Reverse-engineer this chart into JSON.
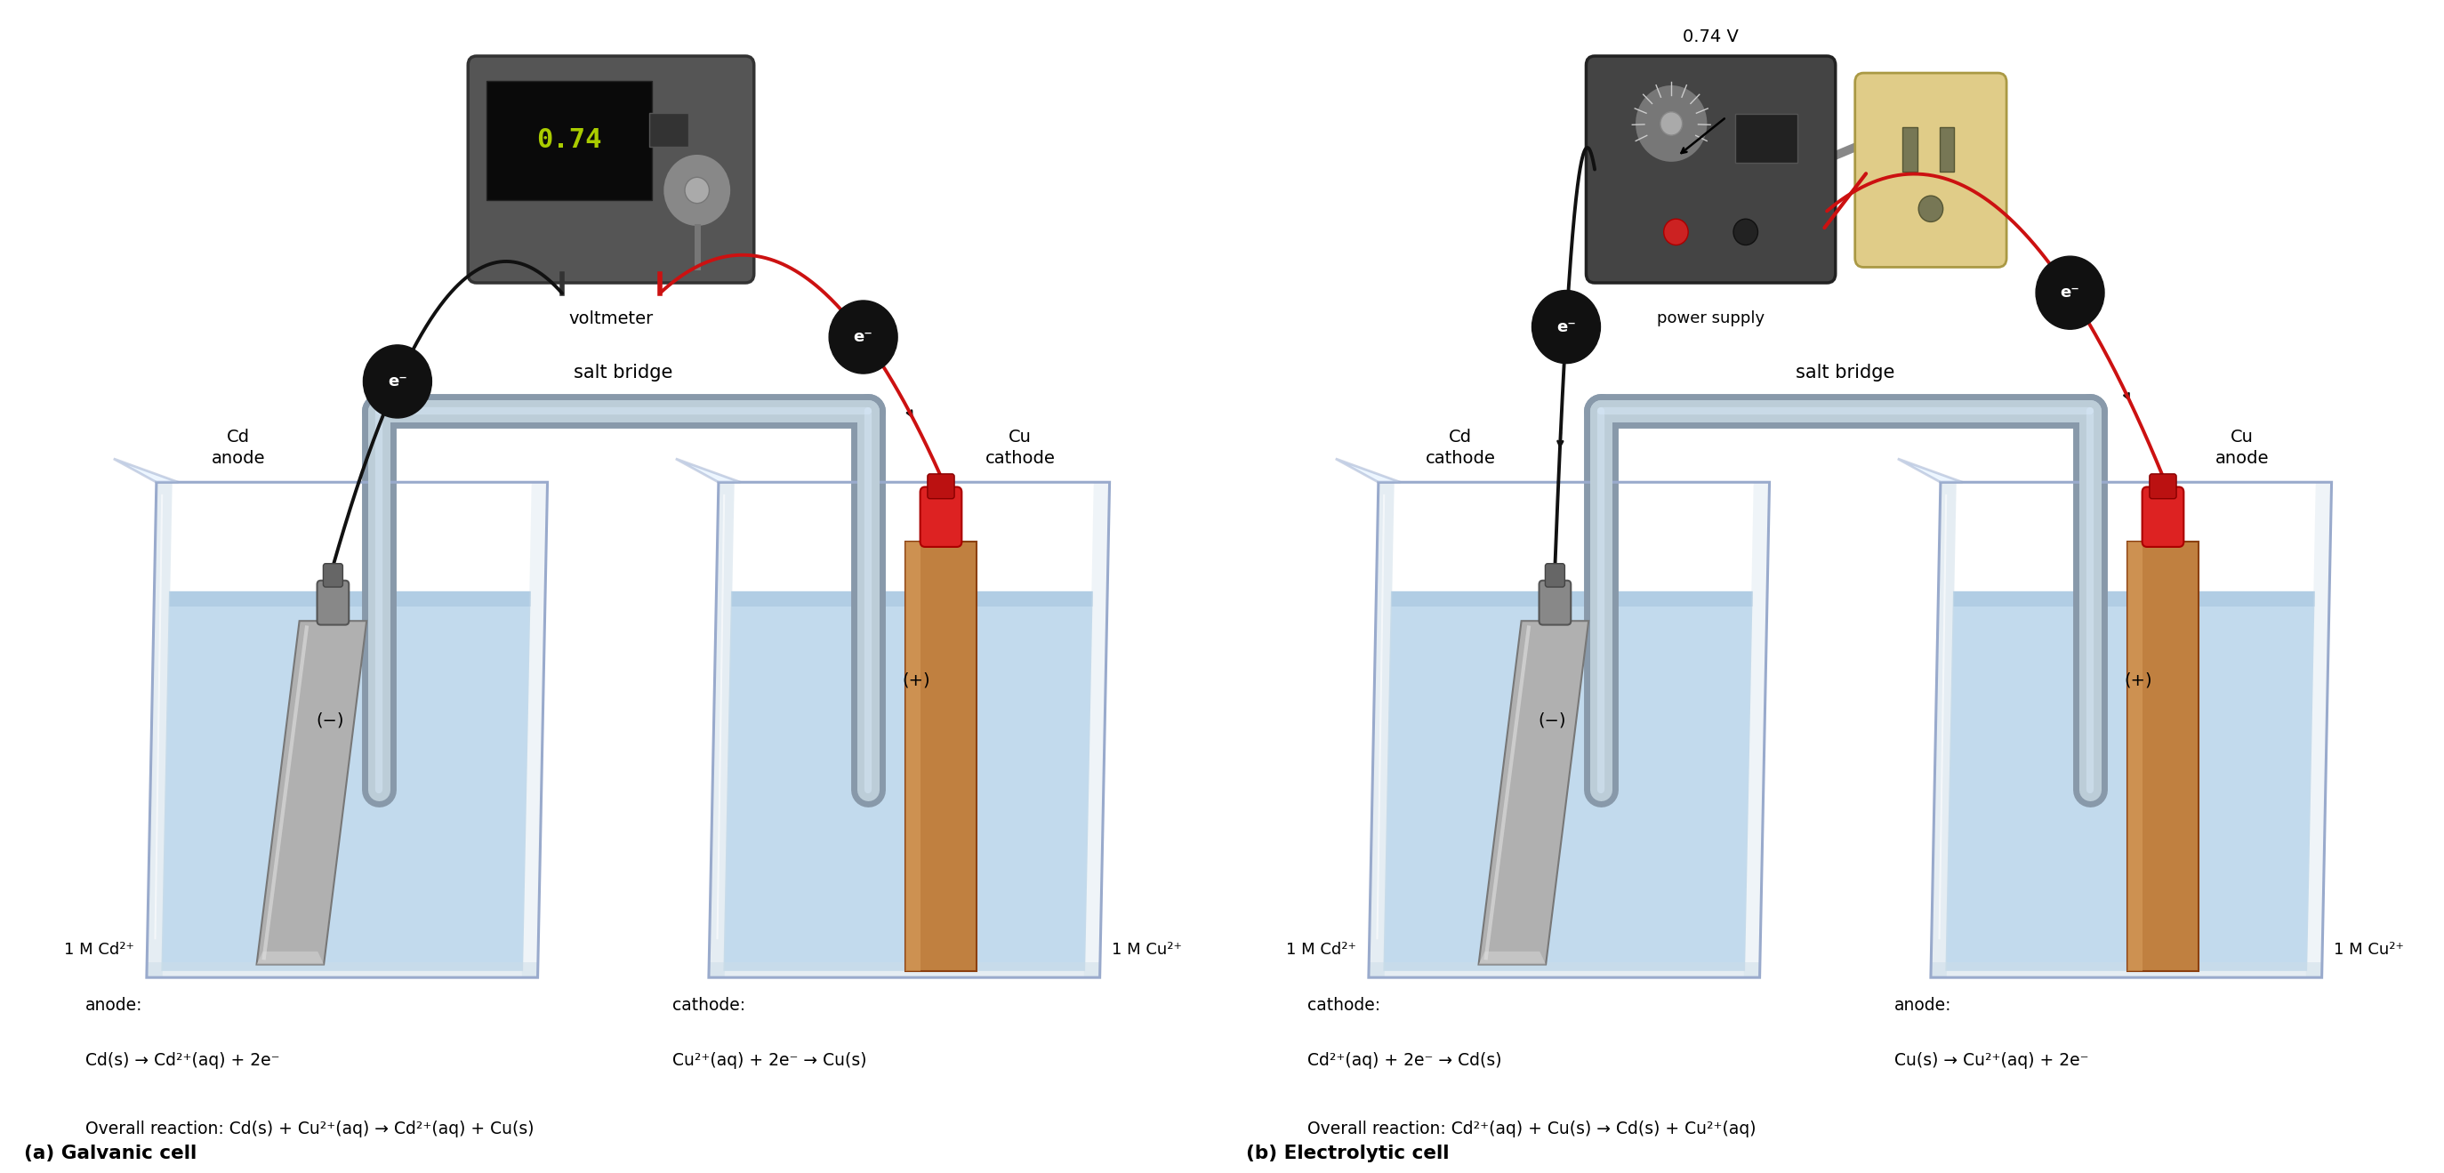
{
  "bg_color": "#ffffff",
  "water_color_light": "#b8d4ea",
  "water_color_dark": "#8ab0d0",
  "beaker_edge_color": "#99aacc",
  "beaker_glass_color": "#ddeeff",
  "salt_bridge_outer": "#8899aa",
  "salt_bridge_inner": "#bccdd8",
  "cd_color_light": "#cccccc",
  "cd_color_dark": "#888888",
  "cu_color_light": "#d4904a",
  "cu_color_dark": "#a06020",
  "wire_black": "#111111",
  "wire_red": "#cc1111",
  "voltmeter_body": "#555555",
  "voltmeter_screen": "#111111",
  "voltmeter_text": "#aacc00",
  "ps_body": "#444444",
  "outlet_body": "#e0cc88",
  "electron_bg": "#111111",
  "label_salt_bridge": "salt bridge",
  "label_voltmeter": "voltmeter",
  "label_power_supply": "power supply",
  "label_cd2": "1 M Cd²⁺",
  "label_cu2": "1 M Cu²⁺",
  "voltage_text": "0.74 V",
  "voltmeter_display": "0.74"
}
